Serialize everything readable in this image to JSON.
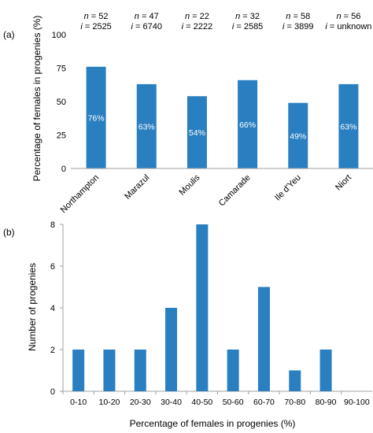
{
  "chart_data": [
    {
      "panel_label": "(a)",
      "type": "bar",
      "categories": [
        "Northampton",
        "Marazul",
        "Moulis",
        "Camarade",
        "Ile d'Yeu",
        "Niort"
      ],
      "values": [
        76,
        63,
        54,
        66,
        49,
        63
      ],
      "data_labels": [
        "76%",
        "63%",
        "54%",
        "66%",
        "49%",
        "63%"
      ],
      "ylabel": "Percentage of females in progenies (%)",
      "xlabel": "",
      "ylim": [
        0,
        100
      ],
      "yticks": [
        0,
        25,
        50,
        75,
        100
      ],
      "header_n": [
        "52",
        "47",
        "22",
        "32",
        "58",
        "56"
      ],
      "header_i": [
        "2525",
        "6740",
        "2222",
        "2585",
        "3899",
        "unknown"
      ],
      "header_n_symbol": "n",
      "header_i_symbol": "i",
      "header_eq": "=",
      "bar_color": "#2a7fc0",
      "grid": false
    },
    {
      "panel_label": "(b)",
      "type": "bar",
      "categories": [
        "0-10",
        "10-20",
        "20-30",
        "30-40",
        "40-50",
        "50-60",
        "60-70",
        "70-80",
        "80-90",
        "90-100"
      ],
      "values": [
        2,
        2,
        2,
        4,
        8,
        2,
        5,
        1,
        2,
        0
      ],
      "ylabel": "Number of progenies",
      "xlabel": "Percentage of females in progenies (%)",
      "ylim": [
        0,
        8
      ],
      "yticks": [
        0,
        2,
        4,
        6,
        8
      ],
      "bar_color": "#2a7fc0",
      "grid": false
    }
  ]
}
